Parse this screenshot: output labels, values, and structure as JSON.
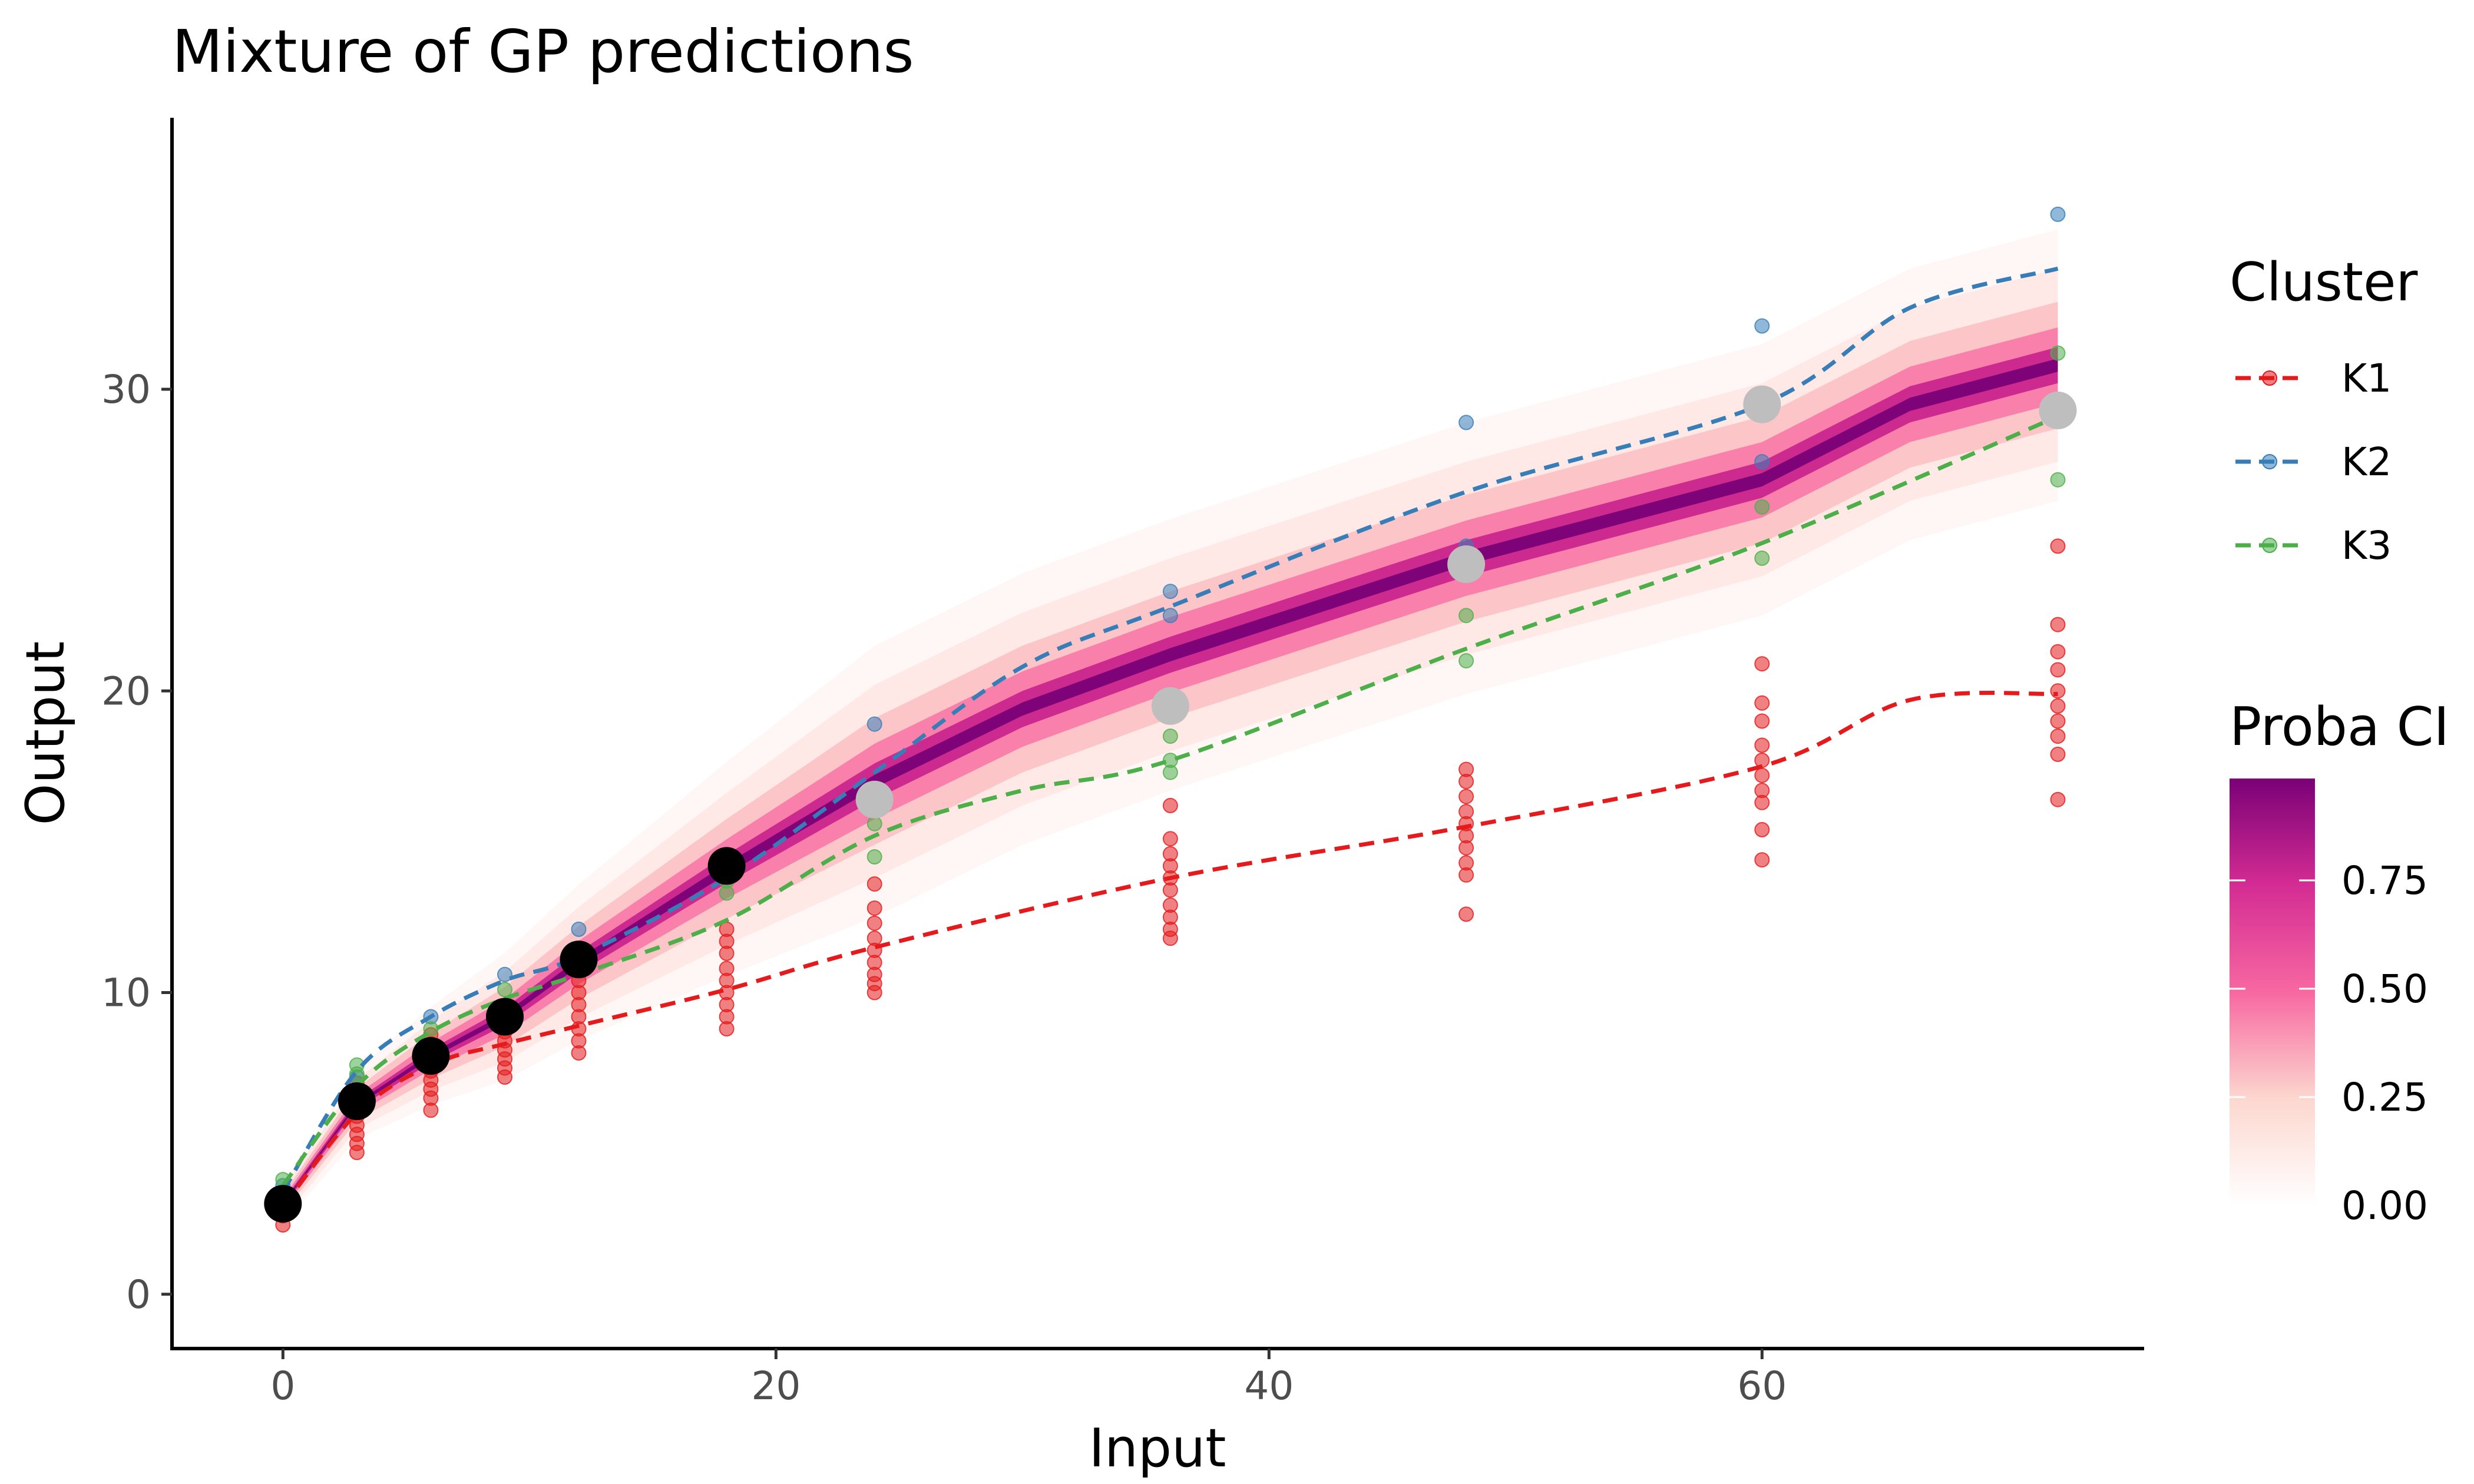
{
  "chart_data": {
    "type": "line",
    "title": "Mixture of GP predictions",
    "xlabel": "Input",
    "ylabel": "Output",
    "xlim": [
      -4.5,
      75.5
    ],
    "ylim": [
      -1.8,
      39.0
    ],
    "x_ticks": [
      0,
      20,
      40,
      60
    ],
    "y_ticks": [
      0,
      10,
      20,
      30
    ],
    "grid": false,
    "legend_position": "right",
    "colors": {
      "K1": "#e41a1c",
      "K2": "#377eb8",
      "K3": "#4daf4a",
      "observed": "#000000",
      "target": "#bebebe",
      "ci_low": "#fff7f3",
      "ci_high": "#7a0177"
    },
    "cluster_legend": {
      "title": "Cluster",
      "entries": [
        "K1",
        "K2",
        "K3"
      ]
    },
    "proba_legend": {
      "title": "Proba CI",
      "ticks": [
        "0.75",
        "0.50",
        "0.25",
        "0.00"
      ],
      "tick_values": [
        0.75,
        0.5,
        0.25,
        0.0
      ]
    },
    "series": [
      {
        "name": "K1",
        "x": [
          0,
          3,
          6,
          9,
          12,
          18,
          24,
          36,
          48,
          60,
          66,
          72
        ],
        "values": [
          2.9,
          6.0,
          7.6,
          8.3,
          8.9,
          10.1,
          11.5,
          13.8,
          15.5,
          17.5,
          19.7,
          19.9
        ]
      },
      {
        "name": "K2",
        "x": [
          0,
          3,
          6,
          9,
          12,
          18,
          24,
          30,
          36,
          48,
          60,
          66,
          72
        ],
        "values": [
          3.4,
          7.4,
          9.2,
          10.4,
          11.2,
          13.8,
          17.3,
          20.8,
          22.8,
          26.6,
          29.5,
          32.7,
          34.0
        ]
      },
      {
        "name": "K3",
        "x": [
          0,
          3,
          6,
          9,
          12,
          18,
          24,
          30,
          36,
          48,
          60,
          72
        ],
        "values": [
          3.6,
          6.9,
          8.7,
          9.8,
          10.6,
          12.4,
          15.2,
          16.7,
          17.7,
          21.4,
          24.9,
          29.1
        ]
      }
    ],
    "prediction_mean": {
      "x": [
        0,
        3,
        6,
        9,
        12,
        18,
        24,
        30,
        36,
        42,
        48,
        54,
        60,
        66,
        72
      ],
      "values": [
        3.0,
        6.3,
        7.9,
        9.2,
        11.0,
        14.1,
        17.0,
        19.4,
        21.2,
        22.8,
        24.4,
        25.7,
        27.0,
        29.5,
        30.8
      ]
    },
    "observed_points": {
      "x": [
        0,
        3,
        6,
        9,
        12,
        18
      ],
      "y": [
        3.0,
        6.4,
        7.9,
        9.2,
        11.1,
        14.2
      ]
    },
    "target_points": {
      "x": [
        24,
        36,
        48,
        60,
        72
      ],
      "y": [
        16.4,
        19.5,
        24.2,
        29.5,
        29.3
      ]
    },
    "scatter": [
      {
        "cluster": "K1",
        "x": [
          0,
          0,
          0,
          0,
          3,
          3,
          3,
          3,
          3,
          3,
          3,
          3,
          3,
          6,
          6,
          6,
          6,
          6,
          6,
          6,
          6,
          6,
          9,
          9,
          9,
          9,
          9,
          9,
          9,
          12,
          12,
          12,
          12,
          12,
          12,
          12,
          12,
          18,
          18,
          18,
          18,
          18,
          18,
          18,
          18,
          18,
          24,
          24,
          24,
          24,
          24,
          24,
          24,
          24,
          24,
          36,
          36,
          36,
          36,
          36,
          36,
          36,
          36,
          36,
          36,
          48,
          48,
          48,
          48,
          48,
          48,
          48,
          48,
          48,
          48,
          60,
          60,
          60,
          60,
          60,
          60,
          60,
          60,
          60,
          60,
          72,
          72,
          72,
          72,
          72,
          72,
          72,
          72,
          72,
          72
        ],
        "y": [
          2.3,
          2.6,
          2.8,
          3.1,
          4.7,
          5.0,
          5.3,
          5.6,
          5.9,
          6.1,
          6.4,
          6.7,
          7.0,
          6.1,
          6.5,
          6.8,
          7.1,
          7.4,
          7.7,
          8.0,
          8.3,
          8.6,
          7.2,
          7.5,
          7.8,
          8.1,
          8.4,
          8.7,
          9.0,
          8.0,
          8.4,
          8.8,
          9.2,
          9.6,
          10.0,
          10.4,
          10.8,
          8.8,
          9.2,
          9.6,
          10.0,
          10.4,
          10.8,
          11.3,
          11.7,
          12.1,
          10.0,
          10.3,
          10.6,
          11.0,
          11.4,
          11.8,
          12.3,
          12.8,
          13.6,
          11.8,
          12.1,
          12.5,
          12.9,
          13.4,
          13.8,
          14.2,
          14.6,
          15.1,
          16.2,
          12.6,
          13.9,
          14.3,
          14.8,
          15.2,
          15.6,
          16.0,
          16.5,
          17.0,
          17.4,
          14.4,
          15.4,
          16.3,
          16.7,
          17.2,
          17.7,
          18.2,
          19.0,
          19.6,
          20.9,
          16.4,
          17.9,
          18.5,
          19.0,
          19.5,
          20.0,
          20.7,
          21.3,
          22.2,
          24.8
        ]
      },
      {
        "cluster": "K2",
        "x": [
          0,
          3,
          6,
          9,
          12,
          18,
          24,
          36,
          36,
          48,
          48,
          60,
          60,
          72
        ],
        "y": [
          3.6,
          7.2,
          9.2,
          10.6,
          12.1,
          13.9,
          18.9,
          22.5,
          23.3,
          24.8,
          28.9,
          27.6,
          32.1,
          35.8
        ]
      },
      {
        "cluster": "K3",
        "x": [
          0,
          3,
          3,
          6,
          9,
          12,
          18,
          18,
          24,
          24,
          36,
          36,
          36,
          48,
          48,
          60,
          60,
          72,
          72
        ],
        "y": [
          3.8,
          7.3,
          7.6,
          8.8,
          10.1,
          11.2,
          13.3,
          13.7,
          14.5,
          15.6,
          17.3,
          17.7,
          18.5,
          21.0,
          22.5,
          24.4,
          26.1,
          27.0,
          31.2
        ]
      }
    ]
  }
}
